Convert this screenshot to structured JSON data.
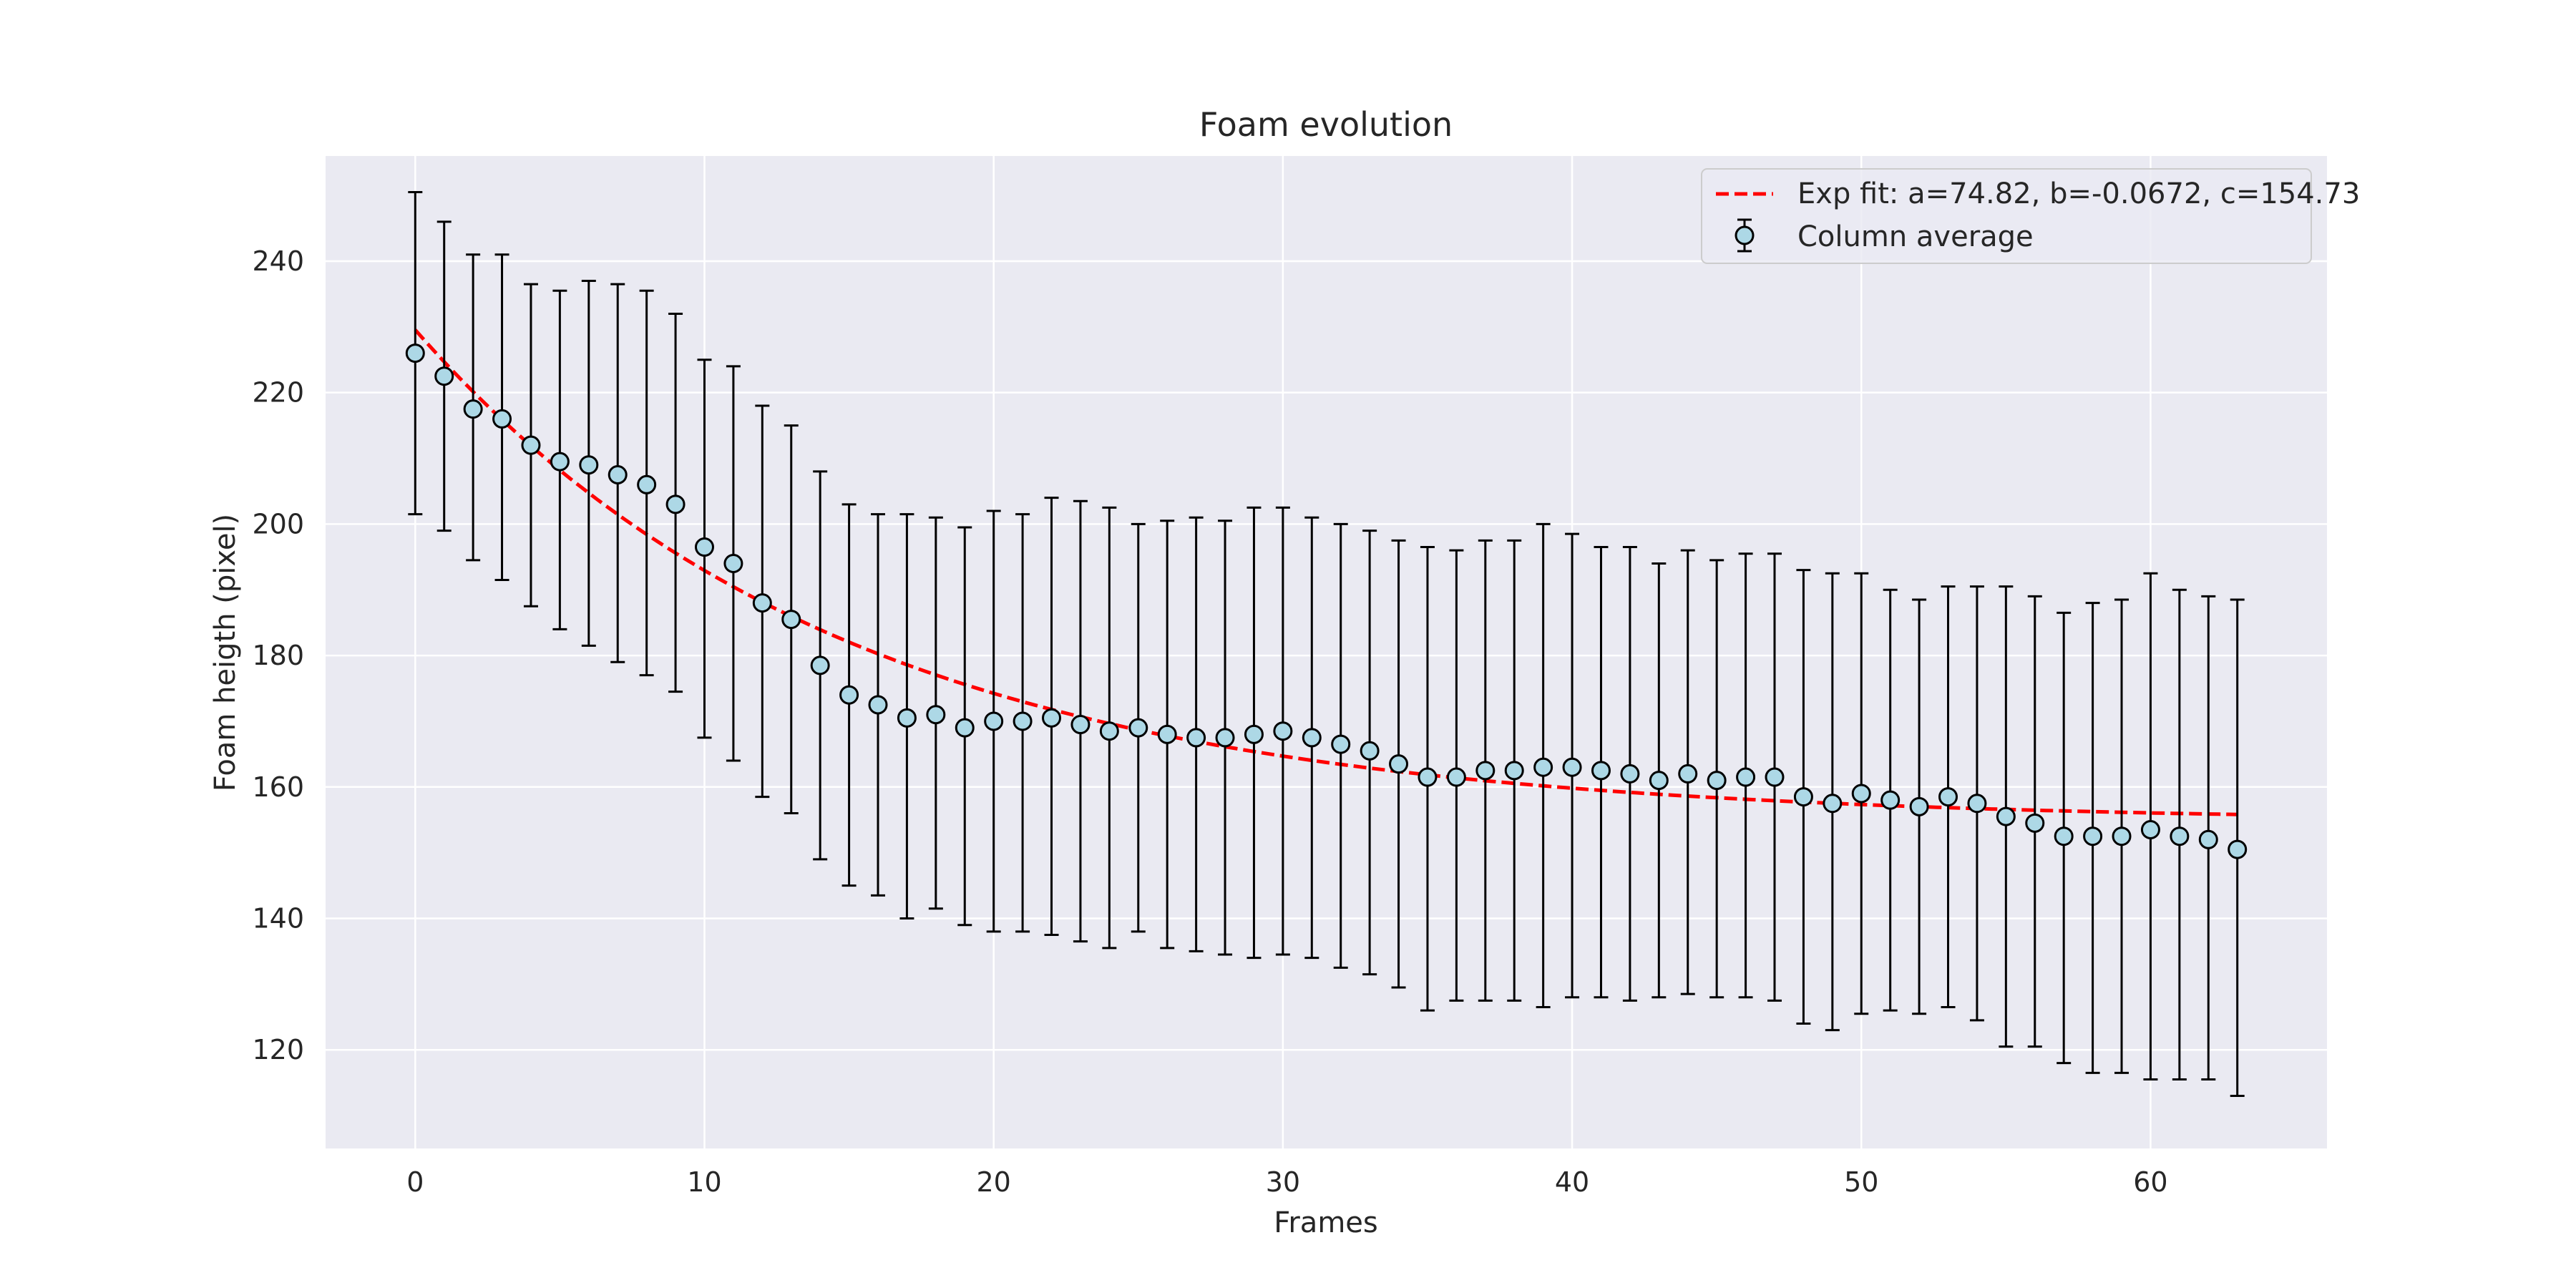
{
  "chart_data": {
    "type": "scatter",
    "title": "Foam evolution",
    "xlabel": "Frames",
    "ylabel": "Foam heigth (pixel)",
    "xlim": [
      -3.1,
      66.1
    ],
    "ylim": [
      105,
      256
    ],
    "xticks": [
      0,
      10,
      20,
      30,
      40,
      50,
      60
    ],
    "yticks": [
      120,
      140,
      160,
      180,
      200,
      220,
      240
    ],
    "grid": true,
    "legend_position": "top-right",
    "colors": {
      "background": "#eaeaf2",
      "grid": "#ffffff",
      "fit_line": "#ff0000",
      "marker_fill": "#add8e6",
      "marker_edge": "#000000",
      "errorbar": "#000000"
    },
    "series": [
      {
        "name": "Column average",
        "kind": "errorbar",
        "x": [
          0,
          1,
          2,
          3,
          4,
          5,
          6,
          7,
          8,
          9,
          10,
          11,
          12,
          13,
          14,
          15,
          16,
          17,
          18,
          19,
          20,
          21,
          22,
          23,
          24,
          25,
          26,
          27,
          28,
          29,
          30,
          31,
          32,
          33,
          34,
          35,
          36,
          37,
          38,
          39,
          40,
          41,
          42,
          43,
          44,
          45,
          46,
          47,
          48,
          49,
          50,
          51,
          52,
          53,
          54,
          55,
          56,
          57,
          58,
          59,
          60,
          61,
          62,
          63
        ],
        "y": [
          226,
          222.5,
          217.5,
          216,
          212,
          209.5,
          209,
          207.5,
          206,
          203,
          196.5,
          194,
          188,
          185.5,
          178.5,
          174,
          172.5,
          170.5,
          171,
          169,
          170,
          170,
          170.5,
          169.5,
          168.5,
          169,
          168,
          167.5,
          167.5,
          168,
          168.5,
          167.5,
          166.5,
          165.5,
          163.5,
          161.5,
          161.5,
          162.5,
          162.5,
          163,
          163,
          162.5,
          162,
          161,
          162,
          161,
          161.5,
          161.5,
          158.5,
          157.5,
          159,
          158,
          157,
          158.5,
          157.5,
          155.5,
          154.5,
          152.5,
          152.5,
          152.5,
          153.5,
          152.5,
          152,
          150.5
        ],
        "y_upper": [
          250.5,
          246,
          241,
          241,
          236.5,
          235.5,
          237,
          236.5,
          235.5,
          232,
          225,
          224,
          218,
          215,
          208,
          203,
          201.5,
          201.5,
          201,
          199.5,
          202,
          201.5,
          204,
          203.5,
          202.5,
          200,
          200.5,
          201,
          200.5,
          202.5,
          202.5,
          201,
          200,
          199,
          197.5,
          196.5,
          196,
          197.5,
          197.5,
          200,
          198.5,
          196.5,
          196.5,
          194,
          196,
          194.5,
          195.5,
          195.5,
          193,
          192.5,
          192.5,
          190,
          188.5,
          190.5,
          190.5,
          190.5,
          189,
          186.5,
          188,
          188.5,
          192.5,
          190,
          189,
          188.5
        ],
        "y_lower": [
          201.5,
          199,
          194.5,
          191.5,
          187.5,
          184,
          181.5,
          179,
          177,
          174.5,
          167.5,
          164,
          158.5,
          156,
          149,
          145,
          143.5,
          140,
          141.5,
          139,
          138,
          138,
          137.5,
          136.5,
          135.5,
          138,
          135.5,
          135,
          134.5,
          134,
          134.5,
          134,
          132.5,
          131.5,
          129.5,
          126,
          127.5,
          127.5,
          127.5,
          126.5,
          128,
          128,
          127.5,
          128,
          128.5,
          128,
          128,
          127.5,
          124,
          123,
          125.5,
          126,
          125.5,
          126.5,
          124.5,
          120.5,
          120.5,
          118,
          116.5,
          116.5,
          115.5,
          115.5,
          115.5,
          113
        ]
      },
      {
        "name": "Exp fit: a=74.82, b=-0.0672, c=154.73",
        "kind": "line",
        "style": "dashed",
        "formula": "a*exp(b*x)+c",
        "params": {
          "a": 74.82,
          "b": -0.0672,
          "c": 154.73
        },
        "x_range": [
          0,
          63
        ]
      }
    ]
  }
}
